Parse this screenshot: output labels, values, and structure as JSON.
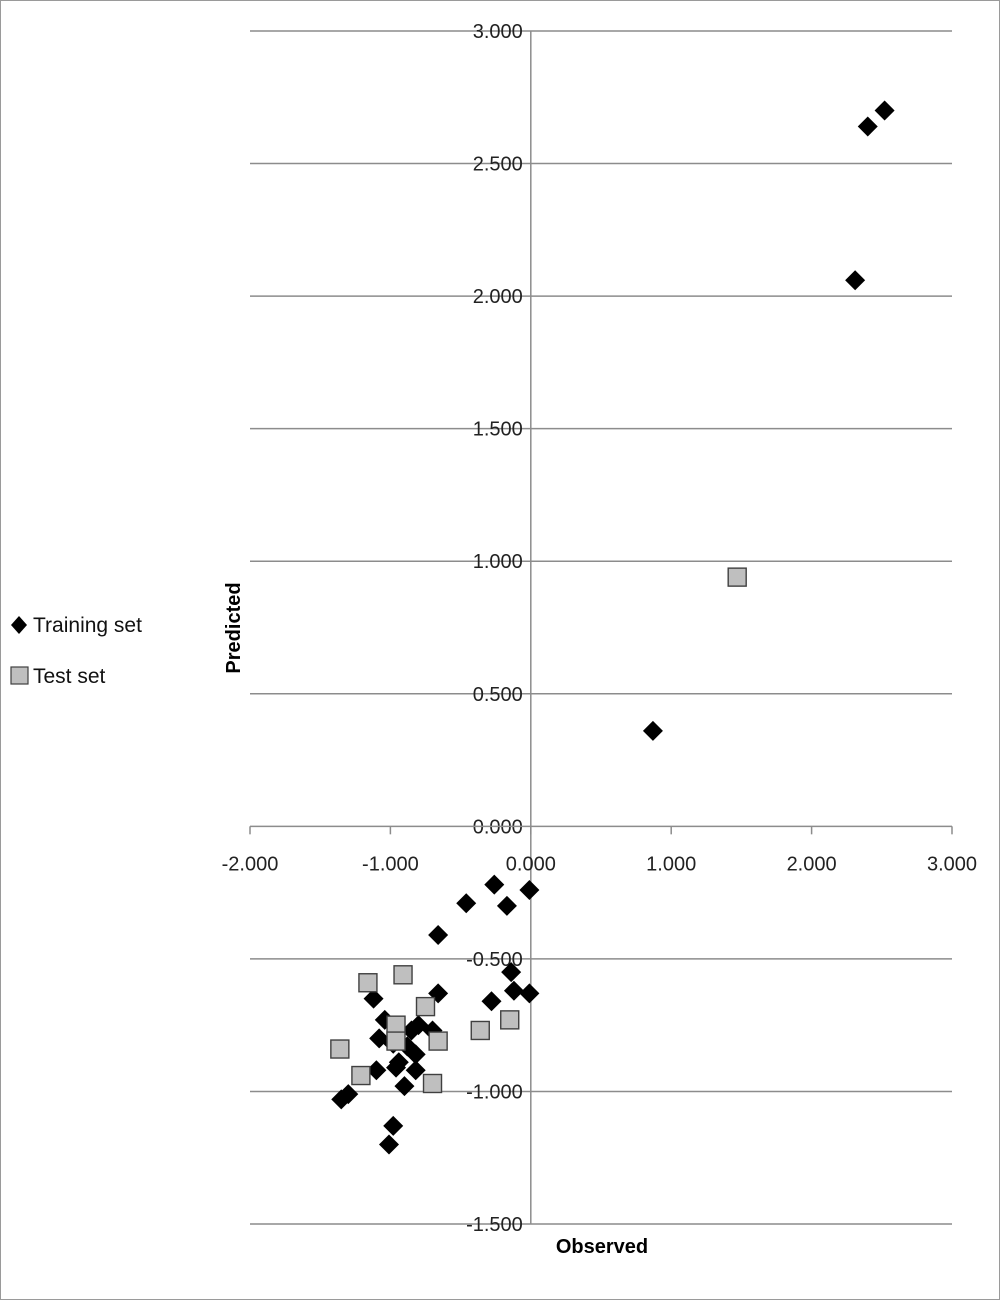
{
  "chart_data": {
    "type": "scatter",
    "title": "",
    "xlabel": "Observed",
    "ylabel": "Predicted",
    "xlim": [
      -2.0,
      3.0
    ],
    "ylim": [
      -1.5,
      3.0
    ],
    "x_ticks": [
      "-2.000",
      "-1.000",
      "0.000",
      "1.000",
      "2.000",
      "3.000"
    ],
    "y_ticks": [
      "-1.500",
      "-1.000",
      "-0.500",
      "0.000",
      "0.500",
      "1.000",
      "1.500",
      "2.000",
      "2.500",
      "3.000"
    ],
    "grid": "horizontal",
    "legend_position": "left",
    "series": [
      {
        "name": "Training set",
        "marker": "diamond",
        "color": "#000000",
        "points": [
          [
            2.4,
            2.64
          ],
          [
            2.52,
            2.7
          ],
          [
            2.31,
            2.06
          ],
          [
            0.87,
            0.36
          ],
          [
            -0.26,
            -0.22
          ],
          [
            -0.46,
            -0.29
          ],
          [
            -0.17,
            -0.3
          ],
          [
            -0.01,
            -0.24
          ],
          [
            -0.66,
            -0.41
          ],
          [
            -0.14,
            -0.55
          ],
          [
            -0.12,
            -0.62
          ],
          [
            -0.01,
            -0.63
          ],
          [
            -0.28,
            -0.66
          ],
          [
            -0.66,
            -0.63
          ],
          [
            -1.12,
            -0.65
          ],
          [
            -1.04,
            -0.73
          ],
          [
            -0.8,
            -0.75
          ],
          [
            -0.85,
            -0.77
          ],
          [
            -0.7,
            -0.77
          ],
          [
            -1.08,
            -0.8
          ],
          [
            -0.98,
            -0.82
          ],
          [
            -0.88,
            -0.83
          ],
          [
            -0.82,
            -0.86
          ],
          [
            -0.94,
            -0.89
          ],
          [
            -0.96,
            -0.91
          ],
          [
            -1.1,
            -0.92
          ],
          [
            -0.82,
            -0.92
          ],
          [
            -0.9,
            -0.98
          ],
          [
            -1.3,
            -1.01
          ],
          [
            -1.35,
            -1.03
          ],
          [
            -0.98,
            -1.13
          ],
          [
            -1.01,
            -1.2
          ]
        ]
      },
      {
        "name": "Test set",
        "marker": "square",
        "color": "#bfbfbf",
        "points": [
          [
            1.47,
            0.94
          ],
          [
            -0.91,
            -0.56
          ],
          [
            -1.16,
            -0.59
          ],
          [
            -0.75,
            -0.68
          ],
          [
            -0.96,
            -0.75
          ],
          [
            -0.15,
            -0.73
          ],
          [
            -0.36,
            -0.77
          ],
          [
            -0.66,
            -0.81
          ],
          [
            -0.96,
            -0.81
          ],
          [
            -1.36,
            -0.84
          ],
          [
            -1.21,
            -0.94
          ],
          [
            -0.7,
            -0.97
          ]
        ]
      }
    ]
  }
}
